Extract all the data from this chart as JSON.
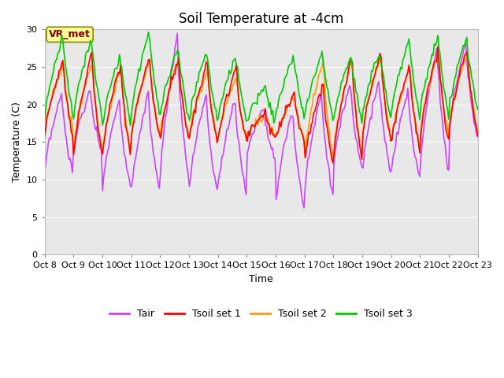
{
  "title": "Soil Temperature at -4cm",
  "xlabel": "Time",
  "ylabel": "Temperature (C)",
  "ylim": [
    0,
    30
  ],
  "yticks": [
    0,
    5,
    10,
    15,
    20,
    25,
    30
  ],
  "xlim": [
    0,
    15
  ],
  "xtick_labels": [
    "Oct 8",
    "Oct 9",
    "Oct 10",
    "Oct 11",
    "Oct 12",
    "Oct 13",
    "Oct 14",
    "Oct 15",
    "Oct 16",
    "Oct 17",
    "Oct 18",
    "Oct 19",
    "Oct 20",
    "Oct 21",
    "Oct 22",
    "Oct 23"
  ],
  "annotation_text": "VR_met",
  "annotation_color": "#800000",
  "figure_bg": "#ffffff",
  "plot_bg": "#e8e8e8",
  "grid_color": "#ffffff",
  "line_colors": {
    "Tair": "#cc44ff",
    "Tsoil1": "#ff0000",
    "Tsoil2": "#ff9900",
    "Tsoil3": "#00cc00"
  },
  "legend_labels": [
    "Tair",
    "Tsoil set 1",
    "Tsoil set 2",
    "Tsoil set 3"
  ],
  "title_fontsize": 12,
  "axis_fontsize": 9,
  "tick_fontsize": 8,
  "line_width": 1.2,
  "annotation_bbox": {
    "facecolor": "#ffff99",
    "edgecolor": "#888800",
    "linewidth": 1.2
  }
}
